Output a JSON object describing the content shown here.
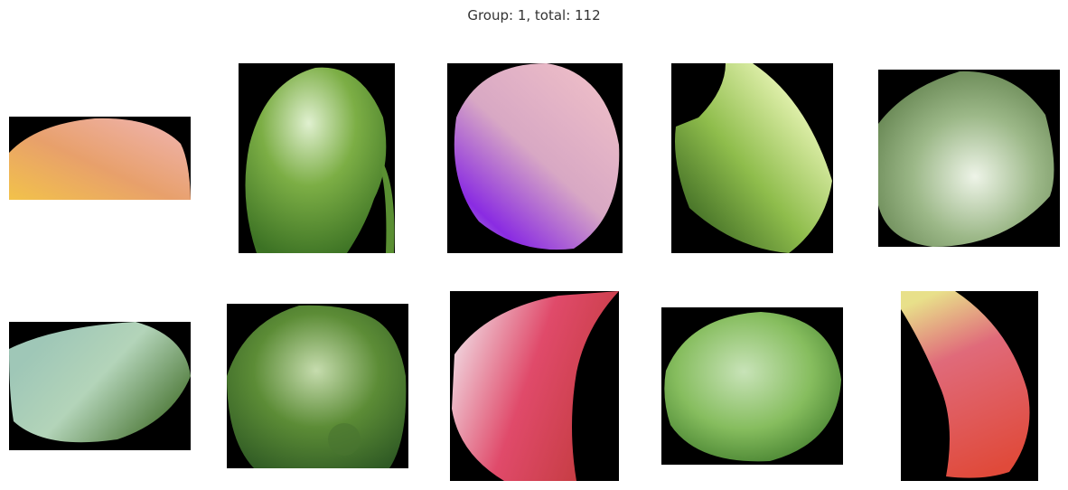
{
  "figure": {
    "title": "Group: 1, total: 112"
  },
  "images": [
    {
      "name": "fruit-crop-1",
      "colors": [
        "#e8a06b",
        "#f0b5b5",
        "#f2c24a"
      ]
    },
    {
      "name": "fruit-crop-2",
      "colors": [
        "#cfe5b5",
        "#7cae45",
        "#4e8a2c"
      ]
    },
    {
      "name": "fruit-crop-3",
      "colors": [
        "#f0b7c6",
        "#d7a7c7",
        "#8a2be2"
      ]
    },
    {
      "name": "fruit-crop-4",
      "colors": [
        "#ddefa8",
        "#8fbd4c",
        "#3f6f25"
      ]
    },
    {
      "name": "fruit-crop-5",
      "colors": [
        "#e3ecd9",
        "#9cb888",
        "#5e7e4a"
      ]
    },
    {
      "name": "fruit-crop-6",
      "colors": [
        "#b3d4b9",
        "#7fae5f",
        "#4f7a3a"
      ]
    },
    {
      "name": "fruit-crop-7",
      "colors": [
        "#c6dcae",
        "#5c8c36",
        "#2f5a24"
      ]
    },
    {
      "name": "fruit-crop-8",
      "colors": [
        "#f0d5de",
        "#e04a6a",
        "#c03a3a"
      ]
    },
    {
      "name": "fruit-crop-9",
      "colors": [
        "#c8e3b8",
        "#86bd5e",
        "#3e7a2a"
      ]
    },
    {
      "name": "fruit-crop-10",
      "colors": [
        "#e8e08a",
        "#e06a7a",
        "#e04a3a"
      ]
    }
  ]
}
